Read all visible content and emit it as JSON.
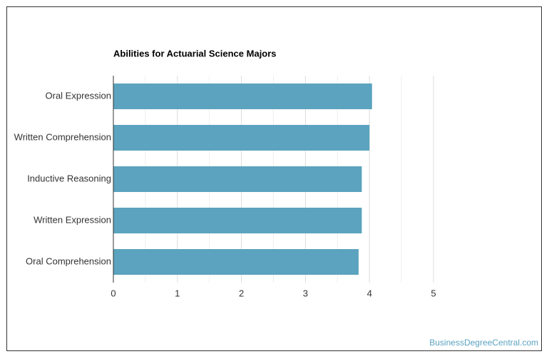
{
  "chart_data": {
    "type": "barh",
    "title": "Abilities for Actuarial Science Majors",
    "categories": [
      "Oral Expression",
      "Written Comprehension",
      "Inductive Reasoning",
      "Written Expression",
      "Oral Comprehension"
    ],
    "values": [
      4.04,
      4.0,
      3.88,
      3.88,
      3.83
    ],
    "color": "#5ba3be",
    "xlim": [
      0,
      5
    ],
    "xticks": [
      0,
      1,
      2,
      3,
      4,
      5
    ],
    "minor_xticks": [
      0.5,
      1.5,
      2.5,
      3.5,
      4.5
    ],
    "grid": true
  },
  "footer": {
    "watermark": "BusinessDegreeCentral.com"
  }
}
